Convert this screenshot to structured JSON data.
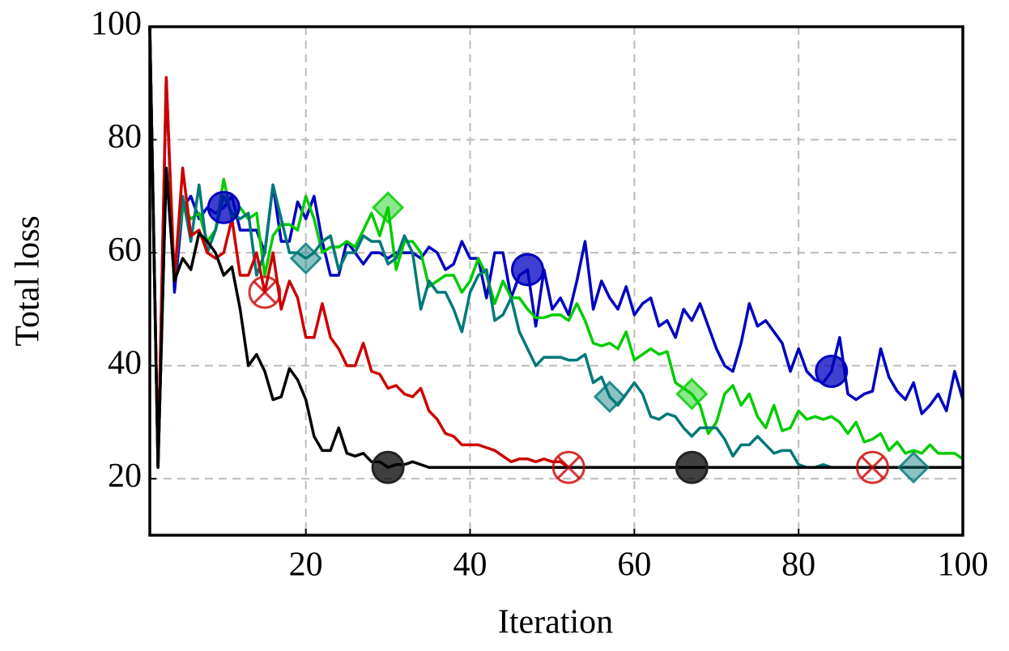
{
  "chart_data": {
    "type": "line",
    "x_label": "Iteration",
    "y_label": "Total loss",
    "x": [
      1,
      2,
      3,
      4,
      5,
      6,
      7,
      8,
      9,
      10,
      11,
      12,
      13,
      14,
      15,
      16,
      17,
      18,
      19,
      20,
      21,
      22,
      23,
      24,
      25,
      26,
      27,
      28,
      29,
      30,
      31,
      32,
      33,
      34,
      35,
      36,
      37,
      38,
      39,
      40,
      41,
      42,
      43,
      44,
      45,
      46,
      47,
      48,
      49,
      50,
      51,
      52,
      53,
      54,
      55,
      56,
      57,
      58,
      59,
      60,
      61,
      62,
      63,
      64,
      65,
      66,
      67,
      68,
      69,
      70,
      71,
      72,
      73,
      74,
      75,
      76,
      77,
      78,
      79,
      80,
      81,
      82,
      83,
      84,
      85,
      86,
      87,
      88,
      89,
      90,
      91,
      92,
      93,
      94,
      95,
      96,
      97,
      98,
      99,
      100
    ],
    "xlim": [
      1,
      100
    ],
    "ylim": [
      10,
      100
    ],
    "xticks": [
      20,
      40,
      60,
      80,
      100
    ],
    "yticks": [
      20,
      40,
      60,
      80,
      100
    ],
    "grid": true,
    "series": [
      {
        "color": "#0000c0",
        "marker": "circle",
        "markers_at": [
          10,
          47,
          84
        ],
        "values": [
          100,
          22,
          91,
          53,
          68,
          70,
          66,
          68,
          67,
          68,
          70,
          64,
          64,
          64,
          60,
          72,
          62,
          62,
          69,
          66,
          70,
          62,
          56,
          56,
          62,
          60,
          58,
          60,
          60,
          59,
          60,
          60,
          60,
          59,
          61,
          60,
          57,
          58,
          62,
          59,
          59,
          52,
          60,
          60,
          52,
          56,
          57,
          47,
          57,
          50,
          52,
          49,
          55,
          62,
          50,
          55,
          52,
          50,
          54,
          49,
          51,
          52,
          47,
          48,
          45,
          50,
          48,
          51,
          47,
          43,
          40,
          39,
          44,
          51,
          47,
          48,
          46,
          44,
          39,
          43,
          39,
          37.5,
          37,
          39,
          45,
          35,
          34,
          35,
          35.5,
          43,
          38,
          35.5,
          34,
          37,
          31.5,
          33,
          35,
          32,
          39,
          34
        ]
      },
      {
        "color": "#00cc00",
        "marker": "diamond",
        "markers_at": [
          30,
          67
        ],
        "values": [
          100,
          22,
          75,
          57,
          68,
          66,
          67,
          62,
          64,
          73,
          66,
          68,
          66,
          67,
          56,
          63,
          65,
          65,
          64,
          70,
          66,
          60,
          61,
          61,
          62,
          61,
          64,
          67,
          63,
          68,
          57,
          62,
          62,
          60,
          54,
          55,
          56,
          56,
          53,
          55,
          59,
          56,
          51,
          55,
          52,
          52,
          50,
          48.5,
          48.5,
          49,
          49,
          48,
          51,
          48,
          44,
          43.5,
          44,
          43,
          46,
          41,
          42,
          43,
          42,
          42.5,
          37,
          36,
          35,
          33,
          28,
          30,
          35,
          36.5,
          33,
          35,
          31,
          29,
          33,
          28.5,
          29,
          32,
          30.5,
          31,
          30.5,
          31,
          30,
          28,
          30,
          26.5,
          27,
          28,
          25,
          26.5,
          24.5,
          25,
          24.5,
          26,
          24.5,
          24.5,
          24.5,
          23.5
        ]
      },
      {
        "color": "#007878",
        "marker": "diamond",
        "markers_at": [
          20,
          57,
          94
        ],
        "values": [
          100,
          22,
          75,
          55,
          70,
          62,
          72,
          60,
          64,
          70,
          67,
          66,
          67,
          56,
          60,
          72,
          66,
          60,
          60,
          59,
          60,
          62,
          63,
          57,
          60,
          60,
          63,
          62,
          62,
          58,
          59,
          63,
          60,
          50,
          55,
          53,
          53,
          50,
          46,
          53,
          56,
          57,
          48,
          49,
          52,
          46,
          43,
          40,
          41.5,
          41.5,
          41.5,
          41,
          41,
          42,
          37,
          38,
          34.5,
          33,
          35,
          37,
          35,
          31,
          30.5,
          31.5,
          31,
          29,
          27.5,
          29,
          29,
          29,
          27,
          24,
          26,
          26,
          27.5,
          26,
          24.5,
          25,
          25,
          22.5,
          22,
          22,
          22.5,
          22,
          22,
          22,
          22,
          22,
          22,
          22,
          22,
          22,
          22,
          22,
          22,
          22,
          22,
          22,
          22,
          22
        ]
      },
      {
        "color": "#cc0000",
        "marker": "circle-x",
        "markers_at": [
          15,
          52,
          89
        ],
        "values": [
          100,
          22,
          91,
          55,
          75,
          63,
          64,
          60,
          59,
          60,
          66,
          56,
          56,
          60,
          53,
          60,
          50,
          55,
          52,
          45,
          45,
          51,
          45,
          43,
          40,
          40,
          44,
          39,
          38.5,
          36,
          36.5,
          35,
          34.5,
          36,
          32,
          30.5,
          28,
          27.5,
          26,
          26,
          26,
          25.5,
          25,
          24,
          23,
          23.5,
          23.5,
          23,
          23.5,
          23,
          23,
          22,
          22,
          22,
          22,
          22,
          22,
          22,
          22,
          22,
          22,
          22,
          22,
          22,
          22,
          22,
          22,
          22,
          22,
          22,
          22,
          22,
          22,
          22,
          22,
          22,
          22,
          22,
          22,
          22,
          22,
          22,
          22,
          22,
          22,
          22,
          22,
          22,
          22,
          22,
          22,
          22,
          22,
          22,
          22,
          22,
          22,
          22,
          22,
          22
        ]
      },
      {
        "color": "#000000",
        "marker": "circle",
        "markers_at": [
          30,
          67
        ],
        "values": [
          100,
          22,
          75,
          55,
          59,
          57,
          63.5,
          62,
          60,
          56,
          57.5,
          50,
          40,
          42,
          39,
          34,
          34.5,
          39.5,
          37.5,
          34,
          27.5,
          25,
          25,
          29,
          24.5,
          24,
          24.5,
          23,
          23,
          22,
          22.5,
          22.5,
          23,
          22.5,
          22,
          22,
          22,
          22,
          22,
          22,
          22,
          22,
          22,
          22,
          22,
          22,
          22,
          22,
          22,
          22,
          22,
          22,
          22,
          22,
          22,
          22,
          22,
          22,
          22,
          22,
          22,
          22,
          22,
          22,
          22,
          22,
          22,
          22,
          22,
          22,
          22,
          22,
          22,
          22,
          22,
          22,
          22,
          22,
          22,
          22,
          22,
          22,
          22,
          22,
          22,
          22,
          22,
          22,
          22,
          22,
          22,
          22,
          22,
          22,
          22,
          22,
          22,
          22,
          22,
          22
        ]
      }
    ]
  }
}
